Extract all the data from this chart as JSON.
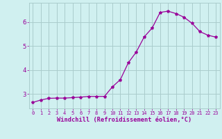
{
  "x": [
    0,
    1,
    2,
    3,
    4,
    5,
    6,
    7,
    8,
    9,
    10,
    11,
    12,
    13,
    14,
    15,
    16,
    17,
    18,
    19,
    20,
    21,
    22,
    23
  ],
  "y": [
    2.65,
    2.75,
    2.82,
    2.83,
    2.83,
    2.85,
    2.87,
    2.9,
    2.9,
    2.9,
    3.3,
    3.6,
    4.3,
    4.75,
    5.38,
    5.75,
    6.4,
    6.45,
    6.35,
    6.2,
    5.95,
    5.6,
    5.45,
    5.37
  ],
  "line_color": "#990099",
  "marker": "*",
  "marker_size": 3.0,
  "bg_color": "#d0f0f0",
  "grid_color": "#aacccc",
  "xlabel": "Windchill (Refroidissement éolien,°C)",
  "xlabel_color": "#990099",
  "tick_color": "#990099",
  "yticks": [
    3,
    4,
    5,
    6
  ],
  "ylim": [
    2.4,
    6.8
  ],
  "xlim": [
    -0.5,
    23.5
  ],
  "xtick_fontsize": 5.0,
  "ytick_fontsize": 6.5,
  "xlabel_fontsize": 6.2
}
